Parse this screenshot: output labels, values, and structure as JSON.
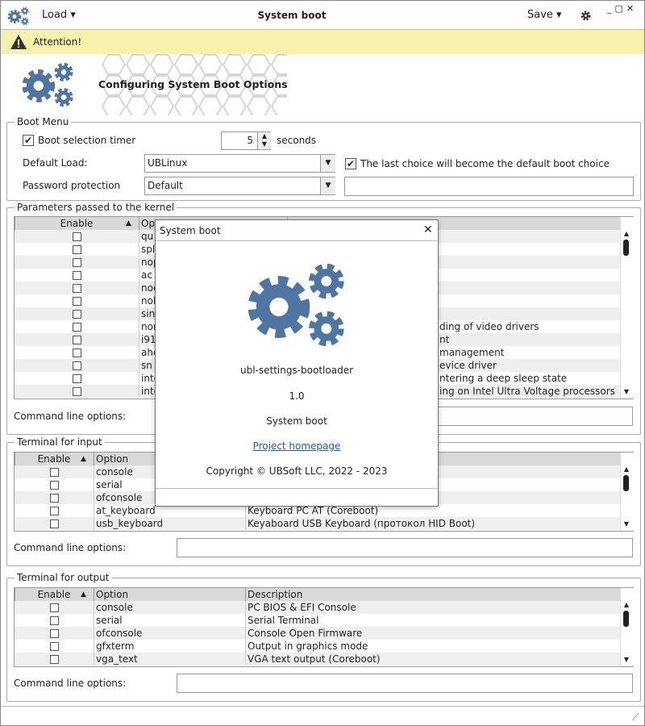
{
  "header": {
    "load": "Load",
    "title": "System boot",
    "save": "Save"
  },
  "banner": {
    "text": "Attention!"
  },
  "hero": {
    "title": "Configuring System Boot Options"
  },
  "boot_menu": {
    "title": "Boot Menu",
    "timer_label": "Boot selection timer",
    "timer_value": 5,
    "timer_unit": "seconds",
    "default_load_label": "Default Load:",
    "default_load_value": "UBLinux",
    "last_choice_label": "The last choice will become the default boot choice",
    "password_label": "Password protection",
    "password_value": "Default"
  },
  "kernel": {
    "title": "Parameters passed to the kernel",
    "columns": [
      "Enable",
      "Op"
    ],
    "rows": [
      {
        "option": "qu",
        "description": null
      },
      {
        "option": "spl",
        "description": null
      },
      {
        "option": "nop",
        "description": null
      },
      {
        "option": "ac",
        "description": null
      },
      {
        "option": "noc",
        "description": null
      },
      {
        "option": "nol",
        "description": null
      },
      {
        "option": "sin",
        "description": null
      },
      {
        "option": "nor",
        "description": "ding of video drivers"
      },
      {
        "option": "i91",
        "description": "nt"
      },
      {
        "option": "ahc",
        "description": "management"
      },
      {
        "option": "sn",
        "description": "evice driver"
      },
      {
        "option": "inte",
        "description": "ntering a deep sleep state"
      },
      {
        "option": "inte",
        "description": "ing on Intel Ultra Voltage processors"
      }
    ],
    "command_label": "Command line options:"
  },
  "input": {
    "title": "Terminal for input",
    "columns": [
      "Enable",
      "Option"
    ],
    "rows": [
      {
        "option": "console",
        "description": null
      },
      {
        "option": "serial",
        "description": null
      },
      {
        "option": "ofconsole",
        "description": null
      },
      {
        "option": "at_keyboard",
        "description": "Keyboard PC AT (Coreboot)"
      },
      {
        "option": "usb_keyboard",
        "description": "Keyaboard USB Keyboard (протокол HID Boot)"
      }
    ],
    "command_label": "Command line options:"
  },
  "output": {
    "title": "Terminal for output",
    "columns": [
      "Enable",
      "Option",
      "Description"
    ],
    "rows": [
      {
        "option": "console",
        "description": "PC BIOS & EFI Console"
      },
      {
        "option": "serial",
        "description": "Serial Terminal"
      },
      {
        "option": "ofconsole",
        "description": "Console Open Firmware"
      },
      {
        "option": "gfxterm",
        "description": "Output in graphics mode"
      },
      {
        "option": "vga_text",
        "description": "VGA text output (Coreboot)"
      }
    ],
    "command_label": "Command line options:"
  },
  "dialog": {
    "title": "System boot",
    "app": "ubl-settings-bootloader",
    "version": "1.0",
    "name": "System boot",
    "link": "Project homepage",
    "copyright": "Copyright © UBSoft LLC, 2022 - 2023"
  }
}
